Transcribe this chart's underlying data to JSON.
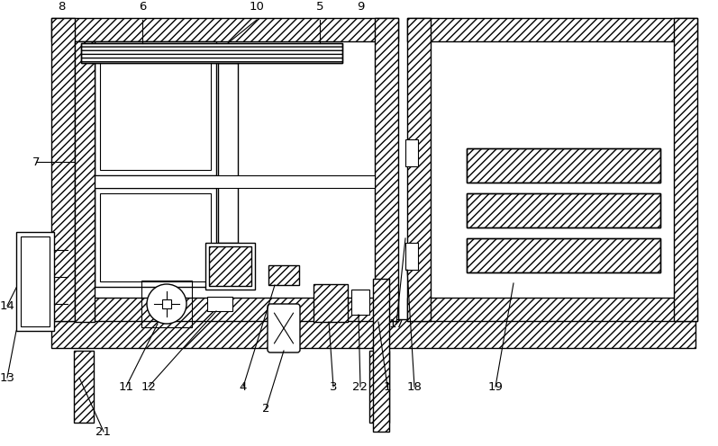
{
  "bg_color": "#ffffff",
  "lc": "#000000",
  "fig_w": 7.97,
  "fig_h": 4.96,
  "dpi": 100
}
